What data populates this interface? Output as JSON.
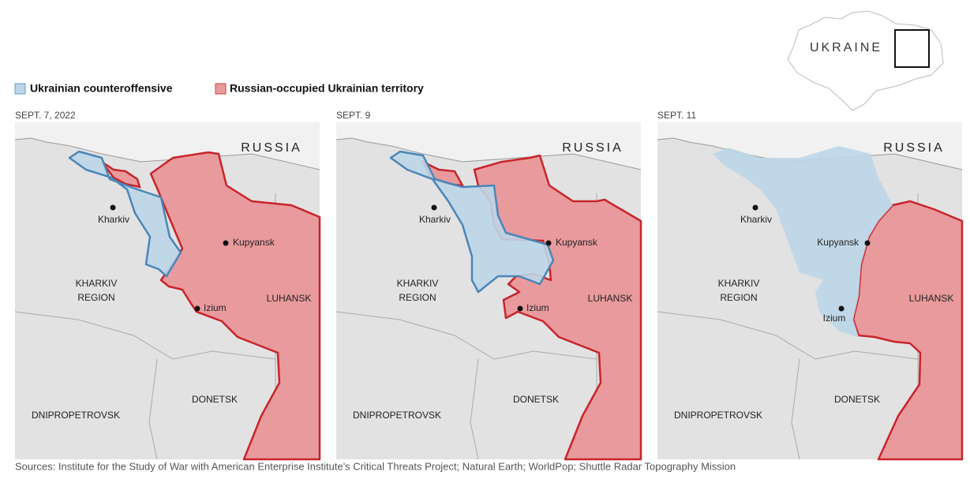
{
  "legend": [
    {
      "label": "Ukrainian counteroffensive",
      "color": "#bcd6e8"
    },
    {
      "label": "Russian-occupied Ukrainian territory",
      "color": "#e99a9c"
    }
  ],
  "inset": {
    "label": "UKRAINE"
  },
  "panels": [
    {
      "date": "SEPT. 7, 2022",
      "places": {
        "russia": "RUSSIA",
        "kharkiv": "Kharkiv",
        "kupyansk": "Kupyansk",
        "izium": "Izium",
        "region": [
          "KHARKIV",
          "REGION"
        ],
        "luhansk": "LUHANSK",
        "donetsk": "DONETSK",
        "dnipro": "DNIPROPETROVSK"
      }
    },
    {
      "date": "SEPT. 9",
      "places": {
        "russia": "RUSSIA",
        "kharkiv": "Kharkiv",
        "kupyansk": "Kupyansk",
        "izium": "Izium",
        "region": [
          "KHARKIV",
          "REGION"
        ],
        "luhansk": "LUHANSK",
        "donetsk": "DONETSK",
        "dnipro": "DNIPROPETROVSK"
      }
    },
    {
      "date": "SEPT. 11",
      "places": {
        "russia": "RUSSIA",
        "kharkiv": "Kharkiv",
        "kupyansk": "Kupyansk",
        "izium": "Izium",
        "region": [
          "KHARKIV",
          "REGION"
        ],
        "luhansk": "LUHANSK",
        "donetsk": "DONETSK",
        "dnipro": "DNIPROPETROVSK"
      }
    }
  ],
  "source": "Sources: Institute for the Study of War with American Enterprise Institute's Critical Threats Project; Natural Earth; WorldPop; Shuttle Radar Topography Mission"
}
